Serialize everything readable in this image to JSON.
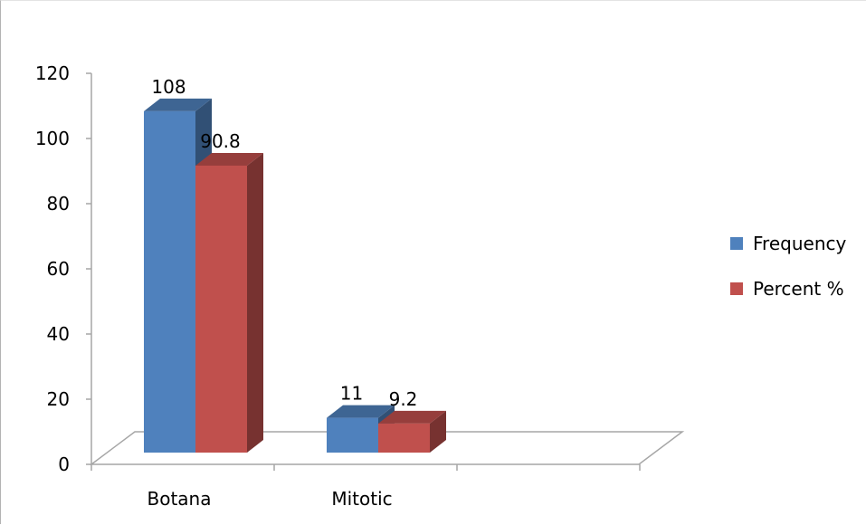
{
  "chart_data": {
    "type": "bar",
    "title": "",
    "xlabel": "",
    "ylabel": "",
    "categories": [
      "Botana",
      "Mitotic"
    ],
    "series": [
      {
        "name": "Frequency",
        "values": [
          108,
          11
        ],
        "labels": [
          "108",
          "11"
        ],
        "color": "#4F81BD"
      },
      {
        "name": "Percent %",
        "values": [
          90.8,
          9.2
        ],
        "labels": [
          "90.8",
          "9.2"
        ],
        "color": "#C0504D"
      }
    ],
    "ylim": [
      0,
      120
    ],
    "y_ticks": [
      "0",
      "20",
      "40",
      "60",
      "80",
      "100",
      "120"
    ],
    "style": "3d-clustered-column",
    "grid": false,
    "legend_position": "right"
  }
}
